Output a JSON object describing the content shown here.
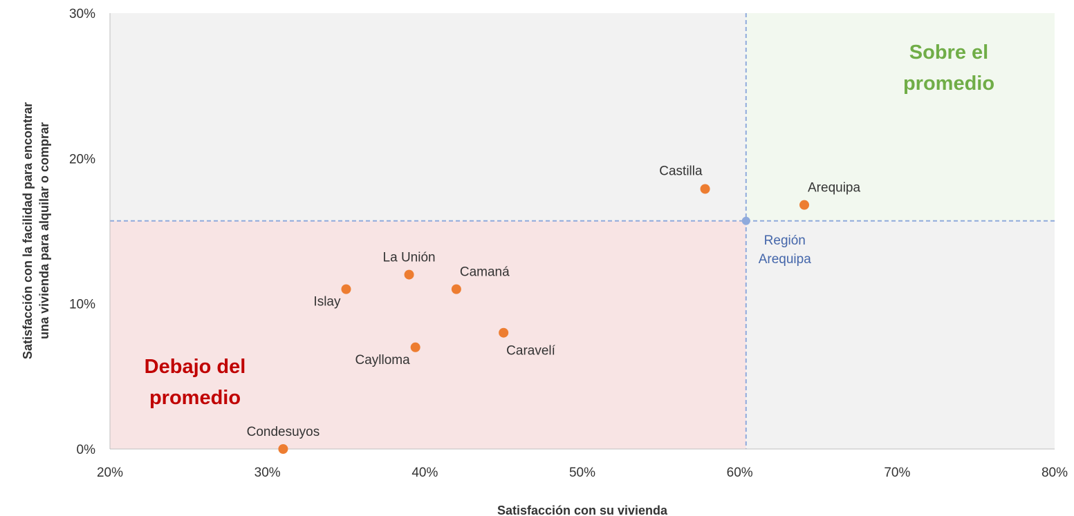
{
  "chart_data": {
    "type": "scatter",
    "xlabel": "Satisfacción con su vivienda",
    "ylabel_lines": [
      "Satisfacción con la facilidad para encontrar",
      "una vivienda para alquilar o comprar"
    ],
    "xlim": [
      0.2,
      0.8
    ],
    "ylim": [
      0,
      0.3
    ],
    "x_ticks": [
      {
        "value": 0.2,
        "label": "20%"
      },
      {
        "value": 0.3,
        "label": "30%"
      },
      {
        "value": 0.4,
        "label": "40%"
      },
      {
        "value": 0.5,
        "label": "50%"
      },
      {
        "value": 0.6,
        "label": "60%"
      },
      {
        "value": 0.7,
        "label": "70%"
      },
      {
        "value": 0.8,
        "label": "80%"
      }
    ],
    "y_ticks": [
      {
        "value": 0.0,
        "label": "0%"
      },
      {
        "value": 0.1,
        "label": "10%"
      },
      {
        "value": 0.2,
        "label": "20%"
      },
      {
        "value": 0.3,
        "label": "30%"
      }
    ],
    "points": [
      {
        "name": "Condesuyos",
        "x": 0.31,
        "y": 0.0,
        "label_pos": "top"
      },
      {
        "name": "Islay",
        "x": 0.35,
        "y": 0.11,
        "label_pos": "bottom-left"
      },
      {
        "name": "La Unión",
        "x": 0.39,
        "y": 0.12,
        "label_pos": "top"
      },
      {
        "name": "Caylloma",
        "x": 0.394,
        "y": 0.07,
        "label_pos": "bottom-left"
      },
      {
        "name": "Camaná",
        "x": 0.42,
        "y": 0.11,
        "label_pos": "top-right"
      },
      {
        "name": "Caravelí",
        "x": 0.45,
        "y": 0.08,
        "label_pos": "bottom-right"
      },
      {
        "name": "Castilla",
        "x": 0.578,
        "y": 0.179,
        "label_pos": "top-left"
      },
      {
        "name": "Arequipa",
        "x": 0.641,
        "y": 0.168,
        "label_pos": "top-right"
      }
    ],
    "average": {
      "name_lines": [
        "Región",
        "Arequipa"
      ],
      "x": 0.604,
      "y": 0.157
    },
    "quadrants": {
      "above": {
        "lines": [
          "Sobre el",
          "promedio"
        ],
        "color": "#70ad47",
        "fill": "#f2f8ef"
      },
      "below": {
        "lines": [
          "Debajo del",
          "promedio"
        ],
        "color": "#c00000",
        "fill": "#f8e4e4"
      },
      "neutral_fill": "#f2f2f2"
    },
    "colors": {
      "points": "#ed7d31",
      "average": "#8faadc",
      "average_label": "#4466aa",
      "reference_lines": "#8faadc"
    },
    "grid": false
  }
}
